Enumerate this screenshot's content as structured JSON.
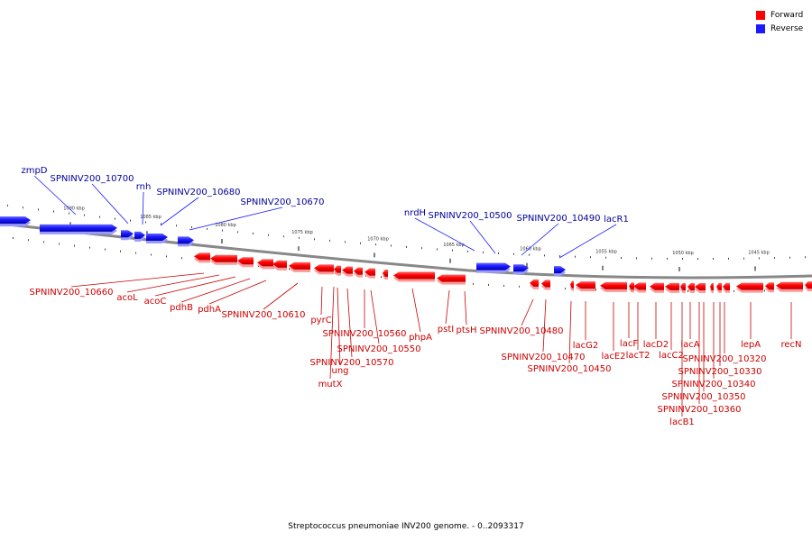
{
  "legend": {
    "forward_label": "Forward",
    "reverse_label": "Reverse",
    "forward_color": "#ff0000",
    "reverse_color": "#1a1aff"
  },
  "colors": {
    "backbone": "#888888",
    "forward_label_color": "#cc0000",
    "reverse_label_color": "#000099"
  },
  "caption": "Streptococcus pneumoniae INV200 genome. - 0..2093317",
  "ticks": [
    "1090 kbp",
    "1085 kbp",
    "1080 kbp",
    "1075 kbp",
    "1070 kbp",
    "1065 kbp",
    "1060 kbp",
    "1055 kbp",
    "1050 kbp",
    "1045 kbp"
  ],
  "reverse_genes": [
    "zmpD",
    "SPNINV200_10700",
    "rnh",
    "SPNINV200_10680",
    "SPNINV200_10670",
    "nrdH",
    "SPNINV200_10500",
    "SPNINV200_10490",
    "lacR1"
  ],
  "forward_genes": [
    "SPNINV200_10660",
    "acoL",
    "acoC",
    "pdhB",
    "pdhA",
    "SPNINV200_10610",
    "pyrC",
    "SPNINV200_10560",
    "SPNINV200_10550",
    "SPNINV200_10570",
    "ung",
    "mutX",
    "phpA",
    "pstI",
    "ptsH",
    "SPNINV200_10480",
    "SPNINV200_10470",
    "SPNINV200_10450",
    "lacG2",
    "lacE2",
    "lacF",
    "lacT2",
    "lacD2",
    "lacC2",
    "lacA",
    "SPNINV200_10320",
    "SPNINV200_10330",
    "SPNINV200_10340",
    "SPNINV200_10350",
    "SPNINV200_10360",
    "lacB1",
    "lepA",
    "recN"
  ]
}
